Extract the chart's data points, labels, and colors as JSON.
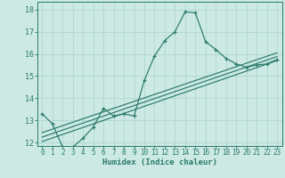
{
  "xlabel": "Humidex (Indice chaleur)",
  "ylabel": "",
  "background_color": "#cce9e4",
  "grid_color": "#b0d8d0",
  "line_color": "#2a7a6a",
  "xlim": [
    -0.5,
    23.5
  ],
  "ylim": [
    11.85,
    18.35
  ],
  "xticks": [
    0,
    1,
    2,
    3,
    4,
    5,
    6,
    7,
    8,
    9,
    10,
    11,
    12,
    13,
    14,
    15,
    16,
    17,
    18,
    19,
    20,
    21,
    22,
    23
  ],
  "yticks": [
    12,
    13,
    14,
    15,
    16,
    17,
    18
  ],
  "curve1_x": [
    0,
    1,
    2,
    3,
    4,
    5,
    6,
    7,
    8,
    9,
    10,
    11,
    12,
    13,
    14,
    15,
    16,
    17,
    18,
    19,
    20,
    21,
    22,
    23
  ],
  "curve1_y": [
    13.3,
    12.85,
    11.8,
    11.8,
    12.2,
    12.7,
    13.55,
    13.2,
    13.3,
    13.2,
    14.8,
    15.9,
    16.6,
    17.0,
    17.9,
    17.85,
    16.55,
    16.2,
    15.8,
    15.55,
    15.4,
    15.5,
    15.55,
    15.75
  ],
  "line2_x": [
    0,
    23
  ],
  "line2_y": [
    12.45,
    16.05
  ],
  "line3_x": [
    0,
    23
  ],
  "line3_y": [
    12.05,
    15.7
  ],
  "line4_x": [
    0,
    23
  ],
  "line4_y": [
    12.25,
    15.88
  ]
}
